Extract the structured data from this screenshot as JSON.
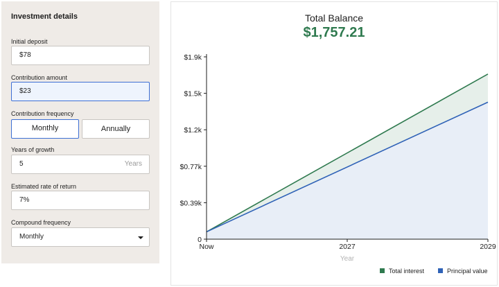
{
  "form": {
    "title": "Investment details",
    "initial_deposit": {
      "label": "Initial deposit",
      "value": "$78"
    },
    "contribution_amount": {
      "label": "Contribution amount",
      "value": "$23"
    },
    "contribution_frequency": {
      "label": "Contribution frequency",
      "options": [
        "Monthly",
        "Annually"
      ],
      "selected": "Monthly"
    },
    "years_of_growth": {
      "label": "Years of growth",
      "value": "5",
      "suffix": "Years"
    },
    "rate_of_return": {
      "label": "Estimated rate of return",
      "value": "7%"
    },
    "compound_frequency": {
      "label": "Compound frequency",
      "value": "Monthly"
    }
  },
  "summary": {
    "title": "Total Balance",
    "amount": "$1,757.21"
  },
  "colors": {
    "interest": "#2f7a4f",
    "principal": "#2f62b7",
    "accent": "#3d6fd4"
  },
  "chart_data": {
    "type": "area",
    "x": [
      "Now",
      "2029"
    ],
    "x_tick_labels": [
      "Now",
      "2027",
      "2029"
    ],
    "xlabel": "Year",
    "y_tick_labels": [
      "0",
      "$0.39k",
      "$0.77k",
      "$1.2k",
      "$1.5k",
      "$1.9k"
    ],
    "ylim": [
      0,
      1940
    ],
    "series": [
      {
        "name": "Total interest",
        "values": [
          78,
          1757.21
        ]
      },
      {
        "name": "Principal value",
        "values": [
          78,
          1458
        ]
      }
    ],
    "legend_position": "bottom-right",
    "grid": false
  }
}
